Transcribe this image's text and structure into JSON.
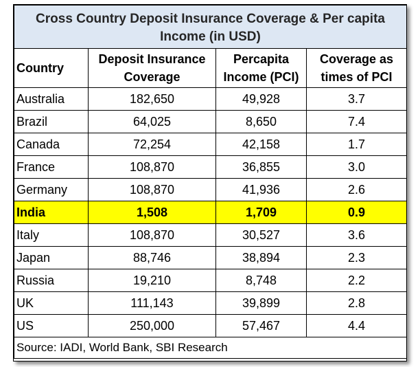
{
  "table": {
    "title": "Cross Country Deposit Insurance Coverage & Per capita Income (in USD)",
    "headers": [
      "Country",
      "Deposit Insurance Coverage",
      "Percapita Income (PCI)",
      "Coverage as times of PCI"
    ],
    "rows": [
      [
        "Australia",
        "182,650",
        "49,928",
        "3.7"
      ],
      [
        "Brazil",
        "64,025",
        "8,650",
        "7.4"
      ],
      [
        "Canada",
        "72,254",
        "42,158",
        "1.7"
      ],
      [
        "France",
        "108,870",
        "36,855",
        "3.0"
      ],
      [
        "Germany",
        "108,870",
        "41,936",
        "2.6"
      ],
      [
        "India",
        "1,508",
        "1,709",
        "0.9"
      ],
      [
        "Italy",
        "108,870",
        "30,527",
        "3.6"
      ],
      [
        "Japan",
        "88,746",
        "38,894",
        "2.3"
      ],
      [
        "Russia",
        "19,210",
        "8,748",
        "2.2"
      ],
      [
        "UK",
        "111,143",
        "39,899",
        "2.8"
      ],
      [
        "US",
        "250,000",
        "57,467",
        "4.4"
      ]
    ],
    "highlight_color": "#ffff00",
    "title_bg_color": "#dde7f3",
    "source": "Source: IADI, World Bank, SBI Research"
  }
}
